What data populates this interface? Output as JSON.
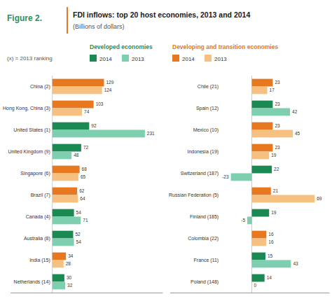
{
  "chart_data": [
    {
      "type": "bar",
      "orientation": "horizontal",
      "title": "FDI inflows: top 20 host economies, 2013 and 2014",
      "subtitle": "(Billions of dollars)",
      "annotations": [
        {
          "text": "Figure 2.",
          "color": "#2a9060"
        },
        {
          "text": "(x) = 2013 ranking"
        }
      ],
      "legend_groups": [
        {
          "title": "Developed economies",
          "color": "#2a9060",
          "colors": [
            "#1a8a52",
            "#7ecfb0"
          ]
        },
        {
          "title": "Developing and transition economies",
          "color": "#e87820",
          "colors": [
            "#e87820",
            "#f5c080"
          ]
        }
      ],
      "categories": [
        "China (2)",
        "Hong Kong, China (3)",
        "United States (1)",
        "United Kingdom (9)",
        "Singapore (6)",
        "Brazil (7)",
        "Canada (4)",
        "Australia (8)",
        "India (15)",
        "Netherlands (14)"
      ],
      "series": [
        {
          "name": "2014",
          "values": [
            129,
            103,
            92,
            72,
            68,
            62,
            54,
            52,
            34,
            30
          ],
          "colors": [
            "#e87820",
            "#e87820",
            "#1a8a52",
            "#1a8a52",
            "#e87820",
            "#e87820",
            "#1a8a52",
            "#1a8a52",
            "#e87820",
            "#1a8a52"
          ]
        },
        {
          "name": "2013",
          "values": [
            124,
            74,
            231,
            48,
            65,
            64,
            71,
            54,
            28,
            32
          ],
          "colors": [
            "#f5c080",
            "#f5c080",
            "#7ecfb0",
            "#7ecfb0",
            "#f5c080",
            "#f5c080",
            "#7ecfb0",
            "#7ecfb0",
            "#f5c080",
            "#7ecfb0"
          ]
        }
      ],
      "xlim": [
        -105,
        275
      ],
      "data_labels": true,
      "tick_labels": "y"
    },
    {
      "type": "bar",
      "orientation": "horizontal",
      "categories": [
        "Chile (21)",
        "Spain (12)",
        "Mexico (10)",
        "Indonesia (19)",
        "Switzerland (187)",
        "Russian Federation (5)",
        "Finland (185)",
        "Colombia (22)",
        "France (11)",
        "Poland (148)"
      ],
      "series": [
        {
          "name": "2014",
          "values": [
            23,
            23,
            23,
            23,
            22,
            21,
            19,
            16,
            15,
            14
          ],
          "colors": [
            "#e87820",
            "#1a8a52",
            "#e87820",
            "#e87820",
            "#1a8a52",
            "#e87820",
            "#1a8a52",
            "#e87820",
            "#1a8a52",
            "#1a8a52"
          ]
        },
        {
          "name": "2013",
          "values": [
            17,
            42,
            45,
            19,
            -23,
            69,
            -5,
            16,
            43,
            0
          ],
          "colors": [
            "#f5c080",
            "#7ecfb0",
            "#f5c080",
            "#f5c080",
            "#7ecfb0",
            "#f5c080",
            "#7ecfb0",
            "#f5c080",
            "#7ecfb0",
            "#7ecfb0"
          ]
        }
      ],
      "xlim": [
        -90,
        85
      ],
      "data_labels": true,
      "tick_labels": "y"
    }
  ]
}
